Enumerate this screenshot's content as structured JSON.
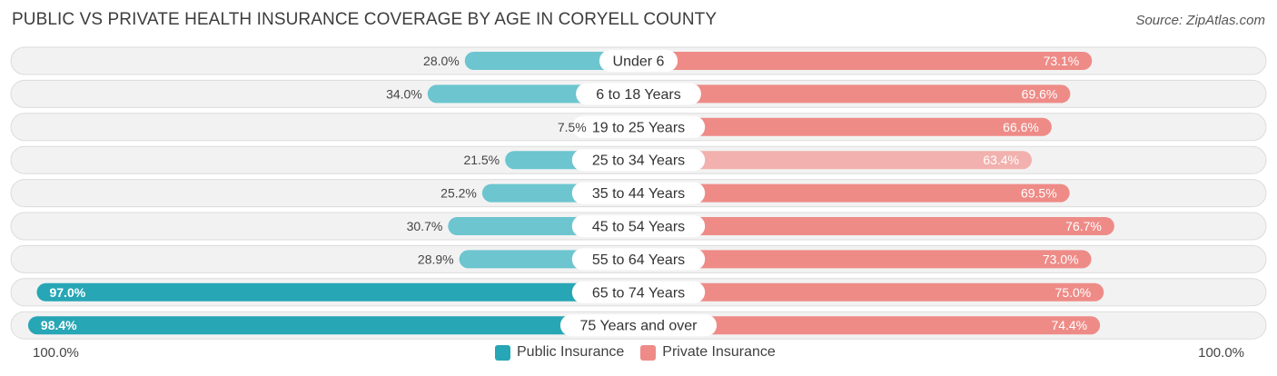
{
  "header": {
    "title": "PUBLIC VS PRIVATE HEALTH INSURANCE COVERAGE BY AGE IN CORYELL COUNTY",
    "source": "Source: ZipAtlas.com"
  },
  "colors": {
    "public": "#6cc5cf",
    "public_strong": "#27a6b5",
    "private": "#ee8b87",
    "private_light": "#f2b1ae",
    "row_bg": "#f2f2f2",
    "row_border": "#dcdcdc"
  },
  "chart_data": {
    "type": "bar",
    "orientation": "horizontal-diverging",
    "title": "PUBLIC VS PRIVATE HEALTH INSURANCE COVERAGE BY AGE IN CORYELL COUNTY",
    "categories": [
      "Under 6",
      "6 to 18 Years",
      "19 to 25 Years",
      "25 to 34 Years",
      "35 to 44 Years",
      "45 to 54 Years",
      "55 to 64 Years",
      "65 to 74 Years",
      "75 Years and over"
    ],
    "series": [
      {
        "name": "Public Insurance",
        "values": [
          28.0,
          34.0,
          7.5,
          21.5,
          25.2,
          30.7,
          28.9,
          97.0,
          98.4
        ],
        "labels": [
          "28.0%",
          "34.0%",
          "7.5%",
          "21.5%",
          "25.2%",
          "30.7%",
          "28.9%",
          "97.0%",
          "98.4%"
        ]
      },
      {
        "name": "Private Insurance",
        "values": [
          73.1,
          69.6,
          66.6,
          63.4,
          69.5,
          76.7,
          73.0,
          75.0,
          74.4
        ],
        "labels": [
          "73.1%",
          "69.6%",
          "66.6%",
          "63.4%",
          "69.5%",
          "76.7%",
          "73.0%",
          "75.0%",
          "74.4%"
        ]
      }
    ],
    "xlim": [
      0,
      100
    ],
    "axis_labels": {
      "left": "100.0%",
      "right": "100.0%"
    },
    "legend": [
      "Public Insurance",
      "Private Insurance"
    ],
    "legend_position": "bottom-center"
  }
}
